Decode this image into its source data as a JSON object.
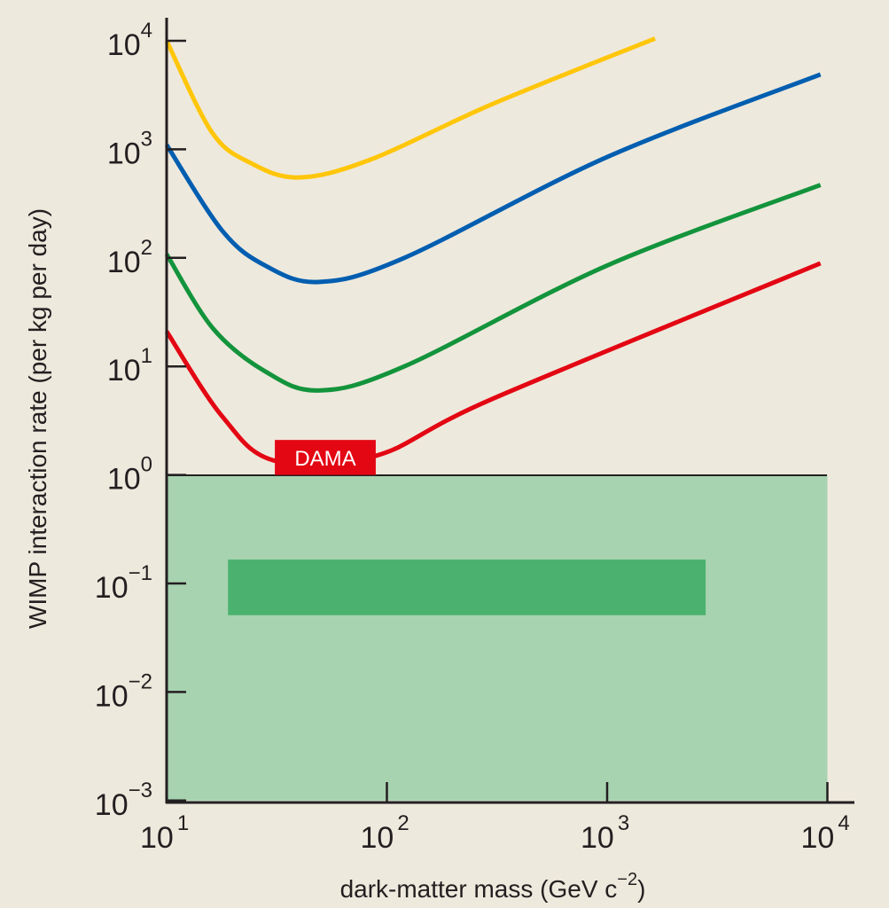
{
  "chart_data": {
    "type": "line",
    "title": "",
    "xlabel": "dark-matter mass (GeV c−2)",
    "xlabel_base": "dark-matter mass (GeV c",
    "xlabel_exp": "−2",
    "xlabel_end": ")",
    "ylabel": "WIMP interaction rate (per kg per day)",
    "x_scale": "log",
    "y_scale": "log",
    "xlim": [
      10,
      10000
    ],
    "ylim": [
      0.001,
      10000
    ],
    "grid": false,
    "x_ticks": [
      {
        "value": 10,
        "base": "10",
        "exp": "1"
      },
      {
        "value": 100,
        "base": "10",
        "exp": "2"
      },
      {
        "value": 1000,
        "base": "10",
        "exp": "3"
      },
      {
        "value": 10000,
        "base": "10",
        "exp": "4"
      }
    ],
    "y_ticks": [
      {
        "value": 10000,
        "base": "10",
        "exp": "4"
      },
      {
        "value": 1000,
        "base": "10",
        "exp": "3"
      },
      {
        "value": 100,
        "base": "10",
        "exp": "2"
      },
      {
        "value": 10,
        "base": "10",
        "exp": "1"
      },
      {
        "value": 1,
        "base": "10",
        "exp": "0"
      },
      {
        "value": 0.1,
        "base": "10",
        "exp": "−1"
      },
      {
        "value": 0.01,
        "base": "10",
        "exp": "−2"
      },
      {
        "value": 0.001,
        "base": "10",
        "exp": "−3"
      }
    ],
    "series": [
      {
        "color": "#ffc60b",
        "points": [
          [
            10,
            10000
          ],
          [
            16,
            1450
          ],
          [
            24,
            750
          ],
          [
            40,
            550
          ],
          [
            85,
            810
          ],
          [
            300,
            2600
          ],
          [
            1650,
            10500
          ]
        ]
      },
      {
        "color": "#005eb0",
        "points": [
          [
            10,
            1100
          ],
          [
            17.8,
            180
          ],
          [
            28,
            85
          ],
          [
            49,
            60
          ],
          [
            120,
            100
          ],
          [
            1000,
            850
          ],
          [
            9300,
            4900
          ]
        ]
      },
      {
        "color": "#13943c",
        "points": [
          [
            10,
            108
          ],
          [
            16.2,
            22.5
          ],
          [
            28,
            9
          ],
          [
            49,
            6
          ],
          [
            120,
            10
          ],
          [
            1000,
            85
          ],
          [
            9300,
            470
          ]
        ]
      },
      {
        "color": "#e30613",
        "points": [
          [
            10,
            21
          ],
          [
            17.8,
            3.5
          ],
          [
            31,
            1.35
          ],
          [
            89,
            1.5
          ],
          [
            300,
            5
          ],
          [
            9300,
            89
          ]
        ]
      }
    ],
    "annotation": {
      "label": "DAMA",
      "color": "#e30613",
      "x_range": [
        31,
        89
      ],
      "y_range": [
        1,
        2.1
      ]
    },
    "regions": [
      {
        "color": "#a7d3b0",
        "x_range": [
          10,
          10000
        ],
        "y_range": [
          0.001,
          1
        ]
      },
      {
        "color": "#4ab26e",
        "x_range": [
          19,
          2800
        ],
        "y_range": [
          0.051,
          0.166
        ]
      }
    ],
    "colors": {
      "background": "#eee9dd",
      "axis": "#231f20"
    }
  }
}
